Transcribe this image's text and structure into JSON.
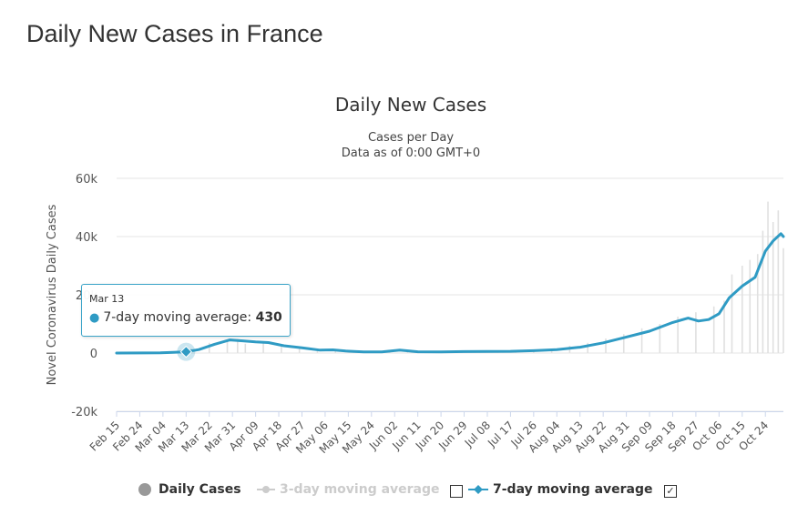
{
  "page": {
    "heading": "Daily New Cases in France"
  },
  "chart_data": {
    "type": "line",
    "title": "Daily New Cases",
    "subtitle_lines": [
      "Cases per Day",
      "Data as of 0:00 GMT+0"
    ],
    "xlabel": "",
    "ylabel": "Novel Coronavirus Daily Cases",
    "ylim": [
      -20000,
      60000
    ],
    "y_ticks": [
      -20000,
      0,
      20000,
      40000,
      60000
    ],
    "y_tick_labels": [
      "-20k",
      "0",
      "20k",
      "40k",
      "60k"
    ],
    "x_range": [
      "2020-02-15",
      "2020-10-31"
    ],
    "x_tick_labels": [
      "Feb 15",
      "Feb 24",
      "Mar 04",
      "Mar 13",
      "Mar 22",
      "Mar 31",
      "Apr 09",
      "Apr 18",
      "Apr 27",
      "May 06",
      "May 15",
      "May 24",
      "Jun 02",
      "Jun 11",
      "Jun 20",
      "Jun 29",
      "Jul 08",
      "Jul 17",
      "Jul 26",
      "Aug 04",
      "Aug 13",
      "Aug 22",
      "Aug 31",
      "Sep 09",
      "Sep 18",
      "Sep 27",
      "Oct 06",
      "Oct 15",
      "Oct 24"
    ],
    "grid": true,
    "legend_position": "bottom",
    "series": [
      {
        "name": "Daily Cases",
        "type": "bar",
        "color": "#e0e0e0",
        "visible": true,
        "x": [
          "2020-03-01",
          "2020-03-08",
          "2020-03-15",
          "2020-03-22",
          "2020-03-29",
          "2020-04-02",
          "2020-04-05",
          "2020-04-12",
          "2020-04-19",
          "2020-04-26",
          "2020-05-03",
          "2020-05-10",
          "2020-05-17",
          "2020-05-24",
          "2020-05-31",
          "2020-06-07",
          "2020-06-14",
          "2020-06-21",
          "2020-06-28",
          "2020-07-05",
          "2020-07-12",
          "2020-07-19",
          "2020-07-26",
          "2020-08-02",
          "2020-08-09",
          "2020-08-16",
          "2020-08-23",
          "2020-08-30",
          "2020-09-06",
          "2020-09-13",
          "2020-09-20",
          "2020-09-27",
          "2020-10-04",
          "2020-10-08",
          "2020-10-11",
          "2020-10-15",
          "2020-10-18",
          "2020-10-21",
          "2020-10-23",
          "2020-10-25",
          "2020-10-27",
          "2020-10-29",
          "2020-10-31"
        ],
        "y": [
          100,
          500,
          1500,
          3500,
          4500,
          4800,
          3200,
          4000,
          2500,
          1500,
          1000,
          700,
          500,
          300,
          500,
          400,
          500,
          450,
          600,
          500,
          600,
          800,
          1200,
          1500,
          2500,
          3500,
          5000,
          6500,
          8500,
          10000,
          12500,
          14000,
          16000,
          18000,
          27000,
          30000,
          32000,
          34000,
          42000,
          52000,
          45000,
          49000,
          36000
        ]
      },
      {
        "name": "3-day moving average",
        "type": "line",
        "color": "#cccccc",
        "visible": false
      },
      {
        "name": "7-day moving average",
        "type": "line",
        "color": "#2f9bc4",
        "visible": true,
        "x": [
          "2020-02-15",
          "2020-02-25",
          "2020-03-03",
          "2020-03-08",
          "2020-03-13",
          "2020-03-18",
          "2020-03-24",
          "2020-03-30",
          "2020-04-04",
          "2020-04-09",
          "2020-04-14",
          "2020-04-20",
          "2020-04-27",
          "2020-05-04",
          "2020-05-09",
          "2020-05-14",
          "2020-05-21",
          "2020-05-28",
          "2020-06-04",
          "2020-06-11",
          "2020-06-20",
          "2020-06-29",
          "2020-07-08",
          "2020-07-17",
          "2020-07-26",
          "2020-08-04",
          "2020-08-13",
          "2020-08-22",
          "2020-08-31",
          "2020-09-09",
          "2020-09-18",
          "2020-09-24",
          "2020-09-28",
          "2020-10-02",
          "2020-10-06",
          "2020-10-10",
          "2020-10-15",
          "2020-10-20",
          "2020-10-24",
          "2020-10-27",
          "2020-10-30",
          "2020-10-31"
        ],
        "y": [
          0,
          20,
          100,
          250,
          430,
          1200,
          3000,
          4500,
          4200,
          3800,
          3600,
          2500,
          1800,
          1000,
          1100,
          700,
          400,
          400,
          1000,
          450,
          400,
          500,
          550,
          600,
          800,
          1200,
          2000,
          3500,
          5500,
          7500,
          10500,
          12000,
          11000,
          11500,
          13500,
          19000,
          23000,
          26000,
          35000,
          38500,
          41000,
          40000
        ]
      }
    ],
    "tooltip": {
      "date": "Mar 13",
      "series": "7-day moving average",
      "label": "7-day moving average: ",
      "value": "430"
    }
  }
}
